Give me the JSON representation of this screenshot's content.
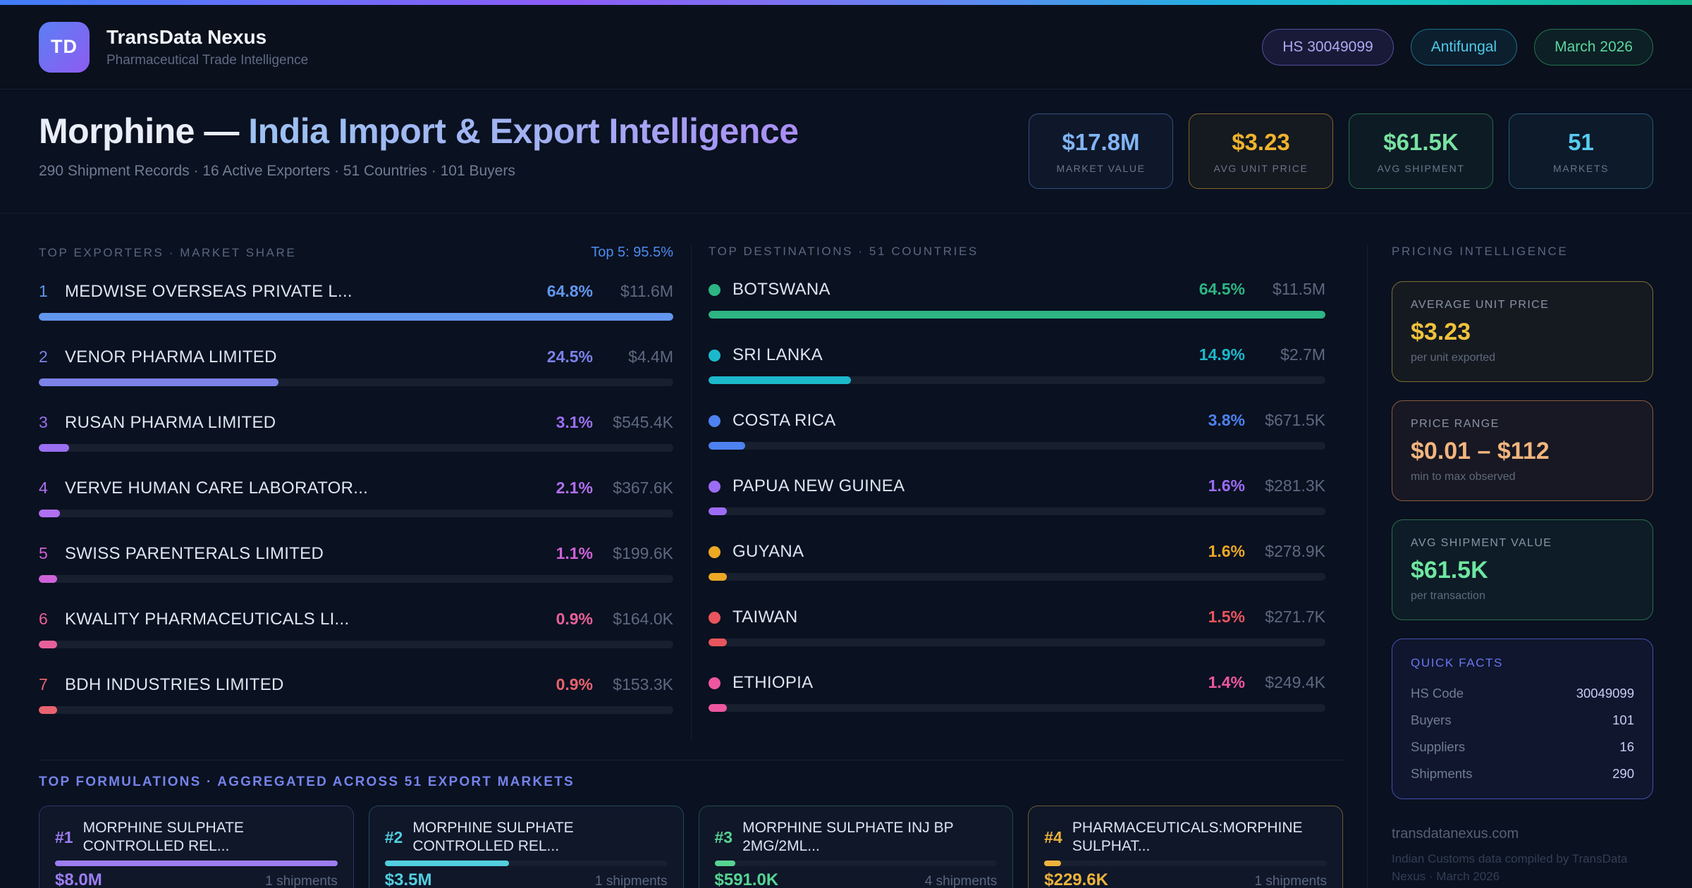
{
  "header": {
    "logo": "TD",
    "title": "TransData Nexus",
    "subtitle": "Pharmaceutical Trade Intelligence",
    "badges": [
      {
        "label": "HS 30049099",
        "color": "#b3a7f2",
        "border": "#54509c",
        "bg": "rgba(110,95,230,0.14)"
      },
      {
        "label": "Antifungal",
        "color": "#4fcbe8",
        "border": "#20708a",
        "bg": "rgba(35,165,205,0.10)"
      },
      {
        "label": "March 2026",
        "color": "#5cd6a0",
        "border": "#27724f",
        "bg": "rgba(40,180,120,0.10)"
      }
    ]
  },
  "hero": {
    "title_primary": "Morphine — ",
    "title_secondary": "India Import & Export Intelligence",
    "subtitle": "290 Shipment Records · 16 Active Exporters · 51 Countries · 101 Buyers",
    "stats": [
      {
        "value": "$17.8M",
        "label": "MARKET VALUE",
        "color": "#82b4f5",
        "border": "#33517e",
        "bg": "rgba(90,150,245,0.05)"
      },
      {
        "value": "$3.23",
        "label": "AVG UNIT PRICE",
        "color": "#f0b42c",
        "border": "#81662a",
        "bg": "rgba(240,180,45,0.05)"
      },
      {
        "value": "$61.5K",
        "label": "AVG SHIPMENT",
        "color": "#79e2a2",
        "border": "#2a6b4a",
        "bg": "rgba(70,210,140,0.05)"
      },
      {
        "value": "51",
        "label": "MARKETS",
        "color": "#58cdf0",
        "border": "#2a5a78",
        "bg": "rgba(60,190,240,0.05)"
      }
    ]
  },
  "exporters": {
    "title": "TOP EXPORTERS · MARKET SHARE",
    "meta": "Top 5: 95.5%",
    "rows": [
      {
        "rank": "1",
        "name": "MEDWISE OVERSEAS PRIVATE L...",
        "pct": "64.8%",
        "value": "$11.6M",
        "color": "#6296ee",
        "bar_width": "100%"
      },
      {
        "rank": "2",
        "name": "VENOR PHARMA LIMITED",
        "pct": "24.5%",
        "value": "$4.4M",
        "color": "#7c82e8",
        "bar_width": "37.8%"
      },
      {
        "rank": "3",
        "name": "RUSAN PHARMA LIMITED",
        "pct": "3.1%",
        "value": "$545.4K",
        "color": "#9a6ff0",
        "bar_width": "4.8%"
      },
      {
        "rank": "4",
        "name": "VERVE HUMAN CARE LABORATOR...",
        "pct": "2.1%",
        "value": "$367.6K",
        "color": "#b170f0",
        "bar_width": "3.3%"
      },
      {
        "rank": "5",
        "name": "SWISS PARENTERALS LIMITED",
        "pct": "1.1%",
        "value": "$199.6K",
        "color": "#cf62d8",
        "bar_width": "1.7%"
      },
      {
        "rank": "6",
        "name": "KWALITY PHARMACEUTICALS LI...",
        "pct": "0.9%",
        "value": "$164.0K",
        "color": "#e8609a",
        "bar_width": "1.4%"
      },
      {
        "rank": "7",
        "name": "BDH INDUSTRIES LIMITED",
        "pct": "0.9%",
        "value": "$153.3K",
        "color": "#e8636e",
        "bar_width": "1.4%"
      }
    ]
  },
  "destinations": {
    "title": "TOP DESTINATIONS · 51 COUNTRIES",
    "rows": [
      {
        "name": "BOTSWANA",
        "pct": "64.5%",
        "value": "$11.5M",
        "color": "#2db583",
        "bar_width": "100%"
      },
      {
        "name": "SRI LANKA",
        "pct": "14.9%",
        "value": "$2.7M",
        "color": "#1cb8cc",
        "bar_width": "23.1%"
      },
      {
        "name": "COSTA RICA",
        "pct": "3.8%",
        "value": "$671.5K",
        "color": "#4d82f0",
        "bar_width": "5.9%"
      },
      {
        "name": "PAPUA NEW GUINEA",
        "pct": "1.6%",
        "value": "$281.3K",
        "color": "#9d6cf5",
        "bar_width": "2.5%"
      },
      {
        "name": "GUYANA",
        "pct": "1.6%",
        "value": "$278.9K",
        "color": "#eda826",
        "bar_width": "2.5%"
      },
      {
        "name": "TAIWAN",
        "pct": "1.5%",
        "value": "$271.7K",
        "color": "#e8555c",
        "bar_width": "2.3%"
      },
      {
        "name": "ETHIOPIA",
        "pct": "1.4%",
        "value": "$249.4K",
        "color": "#ee57a0",
        "bar_width": "2.2%"
      }
    ]
  },
  "pricing": {
    "title": "PRICING INTELLIGENCE",
    "cards": [
      {
        "label": "AVERAGE UNIT PRICE",
        "value": "$3.23",
        "sub": "per unit exported",
        "color": "#f0c23c",
        "border": "#7d6e33",
        "bg": "rgba(240,194,60,0.05)"
      },
      {
        "label": "PRICE RANGE",
        "value": "$0.01 – $112",
        "sub": "min to max observed",
        "color": "#f2b57e",
        "border": "#8a5a40",
        "bg": "rgba(235,140,80,0.06)"
      },
      {
        "label": "AVG SHIPMENT VALUE",
        "value": "$61.5K",
        "sub": "per transaction",
        "color": "#6ee7a2",
        "border": "#2a6e4d",
        "bg": "rgba(60,200,130,0.06)"
      }
    ],
    "quick_facts": {
      "title": "QUICK FACTS",
      "rows": [
        {
          "label": "HS Code",
          "value": "30049099"
        },
        {
          "label": "Buyers",
          "value": "101"
        },
        {
          "label": "Suppliers",
          "value": "16"
        },
        {
          "label": "Shipments",
          "value": "290"
        }
      ]
    },
    "footer_domain": "transdatanexus.com",
    "footer_note": "Indian Customs data compiled by TransData Nexus · March 2026"
  },
  "formulations": {
    "title": "TOP FORMULATIONS · AGGREGATED ACROSS 51 EXPORT MARKETS",
    "cards": [
      {
        "rank": "#1",
        "name": "MORPHINE SULPHATE CONTROLLED REL...",
        "value": "$8.0M",
        "shipments": "1 shipments",
        "color": "#9c7df0",
        "border": "rgba(140,120,240,0.30)",
        "bar_width": "100%"
      },
      {
        "rank": "#2",
        "name": "MORPHINE SULPHATE CONTROLLED REL...",
        "value": "$3.5M",
        "shipments": "1 shipments",
        "color": "#52cede",
        "border": "rgba(70,190,210,0.30)",
        "bar_width": "44%"
      },
      {
        "rank": "#3",
        "name": "MORPHINE SULPHATE INJ BP 2MG/2ML...",
        "value": "$591.0K",
        "shipments": "4 shipments",
        "color": "#57d492",
        "border": "rgba(70,200,140,0.30)",
        "bar_width": "7.4%"
      },
      {
        "rank": "#4",
        "name": "PHARMACEUTICALS:MORPHINE SULPHAT...",
        "value": "$229.6K",
        "shipments": "1 shipments",
        "color": "#ecb33c",
        "border": "rgba(230,175,60,0.45)",
        "bar_width": "2.9%"
      }
    ]
  },
  "chart_data": [
    {
      "type": "bar",
      "title": "TOP EXPORTERS · MARKET SHARE",
      "categories": [
        "MEDWISE OVERSEAS PRIVATE L...",
        "VENOR PHARMA LIMITED",
        "RUSAN PHARMA LIMITED",
        "VERVE HUMAN CARE LABORATOR...",
        "SWISS PARENTERALS LIMITED",
        "KWALITY PHARMACEUTICALS LI...",
        "BDH INDUSTRIES LIMITED"
      ],
      "values": [
        64.8,
        24.5,
        3.1,
        2.1,
        1.1,
        0.9,
        0.9
      ],
      "value_labels_usd": [
        "$11.6M",
        "$4.4M",
        "$545.4K",
        "$367.6K",
        "$199.6K",
        "$164.0K",
        "$153.3K"
      ],
      "unit": "% market share",
      "annotation": "Top 5: 95.5%"
    },
    {
      "type": "bar",
      "title": "TOP DESTINATIONS · 51 COUNTRIES",
      "categories": [
        "BOTSWANA",
        "SRI LANKA",
        "COSTA RICA",
        "PAPUA NEW GUINEA",
        "GUYANA",
        "TAIWAN",
        "ETHIOPIA"
      ],
      "values": [
        64.5,
        14.9,
        3.8,
        1.6,
        1.6,
        1.5,
        1.4
      ],
      "value_labels_usd": [
        "$11.5M",
        "$2.7M",
        "$671.5K",
        "$281.3K",
        "$278.9K",
        "$271.7K",
        "$249.4K"
      ],
      "unit": "% of export value"
    },
    {
      "type": "bar",
      "title": "TOP FORMULATIONS · AGGREGATED ACROSS 51 EXPORT MARKETS",
      "categories": [
        "MORPHINE SULPHATE CONTROLLED REL...",
        "MORPHINE SULPHATE CONTROLLED REL...",
        "MORPHINE SULPHATE INJ BP 2MG/2ML...",
        "PHARMACEUTICALS:MORPHINE SULPHAT..."
      ],
      "values_usd": [
        "$8.0M",
        "$3.5M",
        "$591.0K",
        "$229.6K"
      ],
      "shipments": [
        1,
        1,
        4,
        1
      ]
    }
  ]
}
